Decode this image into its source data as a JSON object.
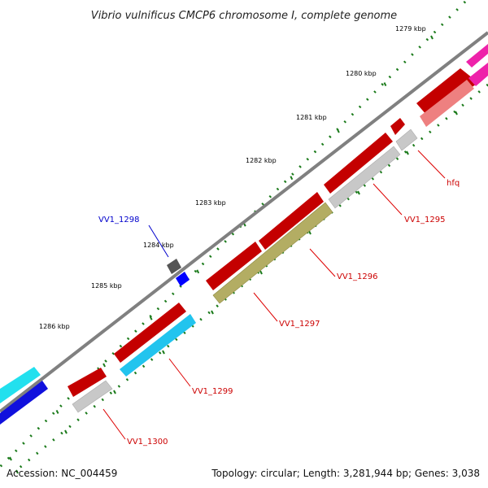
{
  "title": "Vibrio vulnificus CMCP6 chromosome I, complete genome",
  "footer": {
    "accession": "Accession: NC_004459",
    "summary": "Topology: circular; Length: 3,281,944 bp; Genes: 3,038"
  },
  "ticks": [
    "1279 kbp",
    "1280 kbp",
    "1281 kbp",
    "1282 kbp",
    "1283 kbp",
    "1284 kbp",
    "1285 kbp",
    "1286 kbp"
  ],
  "gene_labels": [
    {
      "name": "hfq",
      "color": "#cc0000"
    },
    {
      "name": "VV1_1295",
      "color": "#cc0000"
    },
    {
      "name": "VV1_1296",
      "color": "#cc0000"
    },
    {
      "name": "VV1_1297",
      "color": "#cc0000"
    },
    {
      "name": "VV1_1298",
      "color": "#0000cc"
    },
    {
      "name": "VV1_1299",
      "color": "#cc0000"
    },
    {
      "name": "VV1_1300",
      "color": "#cc0000"
    }
  ],
  "colors": {
    "cds": "#ee0000",
    "grey_gene": "#c8c8c8",
    "olive_gene": "#b3ad63",
    "cyan_gene": "#22c4ee",
    "pink_gene": "#ee8080",
    "magenta_gene": "#ee22aa",
    "backbone": "#808080",
    "tick_mark": "#1a7a1a"
  }
}
